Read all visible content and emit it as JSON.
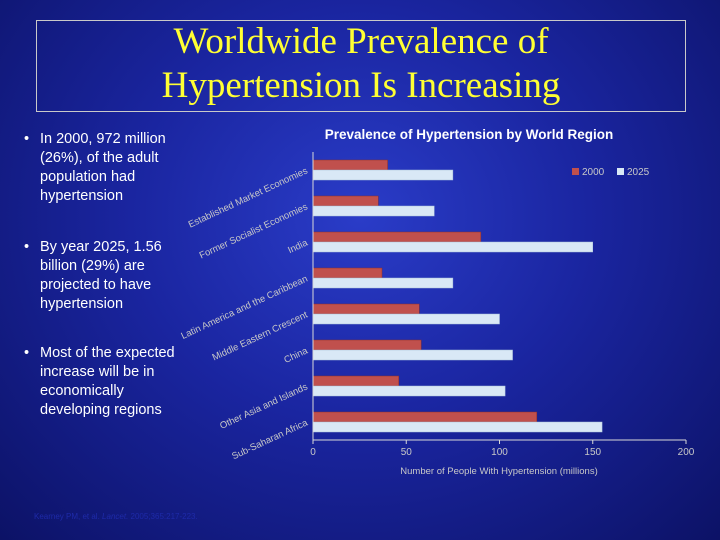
{
  "slide": {
    "title_line1": "Worldwide Prevalence of",
    "title_line2": "Hypertension Is Increasing",
    "bullets": [
      "In 2000, 972 million (26%), of the adult population had hypertension",
      "By year 2025, 1.56 billion (29%) are projected to have hypertension",
      "Most of the expected increase will be in economically developing regions"
    ],
    "citation_authors": "Kearney PM, et al.",
    "citation_journal": "Lancet.",
    "citation_ref": "2005;365:217-223."
  },
  "colors": {
    "series_2000": "#c0504d",
    "series_2025": "#d9e8f6",
    "axis": "#d8d8d8",
    "label": "#c8c8c8",
    "title_text": "#ffff33",
    "chart_title": "#ffffff"
  },
  "chart_data": {
    "type": "bar",
    "orientation": "horizontal",
    "title": "Prevalence of Hypertension by World Region",
    "xlabel": "Number of People With Hypertension (millions)",
    "ylabel": "",
    "xlim": [
      0,
      200
    ],
    "xticks": [
      0,
      50,
      100,
      150,
      200
    ],
    "grid": false,
    "legend": "top-right",
    "categories": [
      "Established Market Economies",
      "Former Socialist Economies",
      "India",
      "Latin America and the Caribbean",
      "Middle Eastern Crescent",
      "China",
      "Other Asia and Islands",
      "Sub-Saharan Africa"
    ],
    "series": [
      {
        "name": "2000",
        "values": [
          40,
          35,
          90,
          37,
          57,
          58,
          46,
          120
        ]
      },
      {
        "name": "2025",
        "values": [
          75,
          65,
          150,
          75,
          100,
          107,
          103,
          155
        ]
      }
    ]
  }
}
